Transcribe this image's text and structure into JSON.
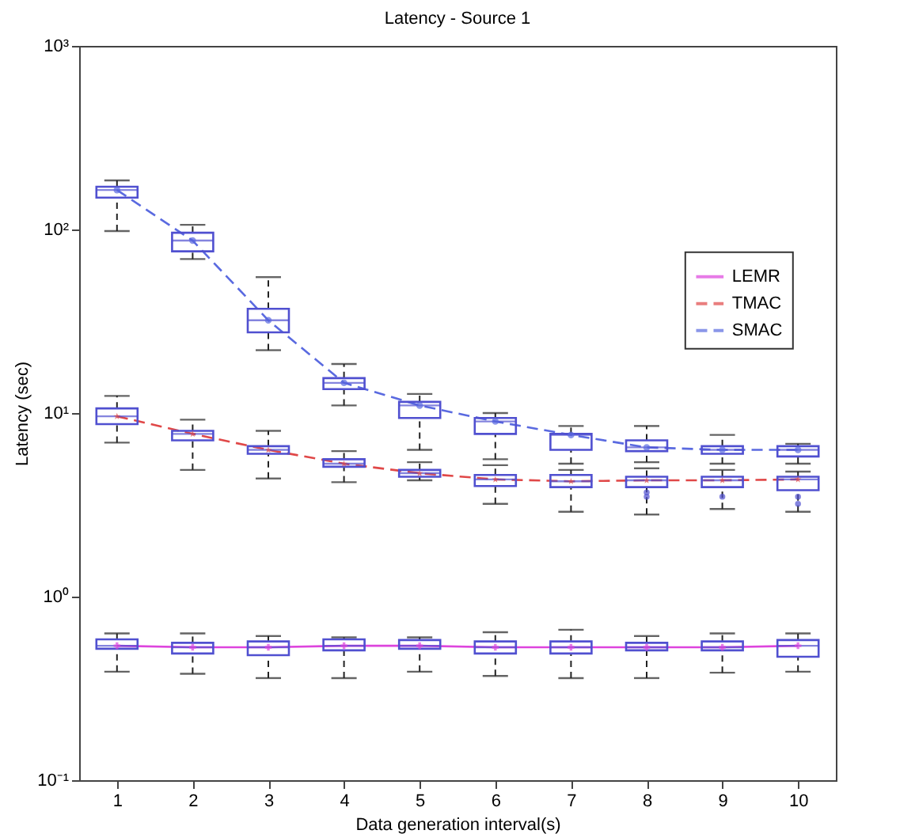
{
  "chart_data": {
    "type": "box",
    "title": "Latency - Source 1",
    "xlabel": "Data generation interval(s)",
    "ylabel": "Latency (sec)",
    "categories": [
      "1",
      "2",
      "3",
      "4",
      "5",
      "6",
      "7",
      "8",
      "9",
      "10"
    ],
    "log": true,
    "ylim": [
      0.1,
      1000
    ],
    "yticks": [
      {
        "value": 0.1,
        "label": "10⁻¹"
      },
      {
        "value": 1,
        "label": "10⁰"
      },
      {
        "value": 10,
        "label": "10¹"
      },
      {
        "value": 100,
        "label": "10²"
      },
      {
        "value": 1000,
        "label": "10³"
      }
    ],
    "grid": false,
    "legend": "top right",
    "series": [
      {
        "color": "#5050d0",
        "boxes": [
          {
            "low": 0.39,
            "q1": 0.52,
            "median": 0.54,
            "q3": 0.585,
            "high": 0.63
          },
          {
            "low": 0.38,
            "q1": 0.49,
            "median": 0.53,
            "q3": 0.56,
            "high": 0.63
          },
          {
            "low": 0.36,
            "q1": 0.48,
            "median": 0.53,
            "q3": 0.57,
            "high": 0.61
          },
          {
            "low": 0.36,
            "q1": 0.51,
            "median": 0.54,
            "q3": 0.585,
            "high": 0.6
          },
          {
            "low": 0.39,
            "q1": 0.52,
            "median": 0.54,
            "q3": 0.58,
            "high": 0.6
          },
          {
            "low": 0.37,
            "q1": 0.49,
            "median": 0.53,
            "q3": 0.57,
            "high": 0.64
          },
          {
            "low": 0.36,
            "q1": 0.49,
            "median": 0.53,
            "q3": 0.57,
            "high": 0.66
          },
          {
            "low": 0.36,
            "q1": 0.51,
            "median": 0.53,
            "q3": 0.56,
            "high": 0.61
          },
          {
            "low": 0.385,
            "q1": 0.51,
            "median": 0.53,
            "q3": 0.57,
            "high": 0.63
          },
          {
            "low": 0.39,
            "q1": 0.47,
            "median": 0.54,
            "q3": 0.58,
            "high": 0.63
          }
        ]
      },
      {
        "color": "#5050d0",
        "boxes": [
          {
            "low": 6.9,
            "q1": 8.7,
            "median": 9.6,
            "q3": 10.6,
            "high": 12.4
          },
          {
            "low": 4.9,
            "q1": 7.1,
            "median": 7.7,
            "q3": 8.0,
            "high": 9.2
          },
          {
            "low": 4.4,
            "q1": 6.0,
            "median": 6.3,
            "q3": 6.6,
            "high": 8.0
          },
          {
            "low": 4.2,
            "q1": 5.1,
            "median": 5.3,
            "q3": 5.6,
            "high": 6.2
          },
          {
            "low": 4.3,
            "q1": 4.5,
            "median": 4.7,
            "q3": 4.9,
            "high": 5.4
          },
          {
            "low": 3.2,
            "q1": 4.0,
            "median": 4.35,
            "q3": 4.6,
            "high": 5.2
          },
          {
            "low": 2.9,
            "q1": 3.95,
            "median": 4.25,
            "q3": 4.6,
            "high": 4.9
          },
          {
            "low": 2.8,
            "q1": 3.95,
            "median": 4.3,
            "q3": 4.5,
            "high": 5.0,
            "outliers": [
              3.7,
              3.5
            ]
          },
          {
            "low": 3.0,
            "q1": 3.95,
            "median": 4.3,
            "q3": 4.5,
            "high": 4.9,
            "outliers": [
              3.5
            ]
          },
          {
            "low": 2.9,
            "q1": 3.8,
            "median": 4.35,
            "q3": 4.5,
            "high": 4.8,
            "outliers": [
              3.5,
              3.2
            ]
          }
        ]
      },
      {
        "color": "#5050d0",
        "boxes": [
          {
            "low": 98,
            "q1": 149,
            "median": 164,
            "q3": 171,
            "high": 185
          },
          {
            "low": 69,
            "q1": 76,
            "median": 87,
            "q3": 96,
            "high": 106
          },
          {
            "low": 22,
            "q1": 27.5,
            "median": 32,
            "q3": 37,
            "high": 55
          },
          {
            "low": 11,
            "q1": 13.5,
            "median": 14.6,
            "q3": 15.5,
            "high": 18.5
          },
          {
            "low": 6.3,
            "q1": 9.4,
            "median": 11,
            "q3": 11.5,
            "high": 12.7
          },
          {
            "low": 5.6,
            "q1": 7.7,
            "median": 9.0,
            "q3": 9.4,
            "high": 10
          },
          {
            "low": 5.3,
            "q1": 6.3,
            "median": 7.6,
            "q3": 7.7,
            "high": 8.5
          },
          {
            "low": 5.4,
            "q1": 6.2,
            "median": 6.5,
            "q3": 7.1,
            "high": 8.5
          },
          {
            "low": 5.3,
            "q1": 6.0,
            "median": 6.3,
            "q3": 6.6,
            "high": 7.6
          },
          {
            "low": 5.3,
            "q1": 5.8,
            "median": 6.3,
            "q3": 6.6,
            "high": 6.8
          }
        ]
      },
      {
        "type": "line",
        "name": "LEMR",
        "color": "#dd44dd",
        "line_style": "solid",
        "marker": "cross",
        "values": [
          0.54,
          0.53,
          0.53,
          0.54,
          0.54,
          0.53,
          0.53,
          0.53,
          0.53,
          0.54
        ]
      },
      {
        "type": "line",
        "name": "TMAC",
        "color": "#e04848",
        "line_style": "dashed",
        "marker": "star",
        "values": [
          9.6,
          7.7,
          6.3,
          5.3,
          4.7,
          4.35,
          4.25,
          4.3,
          4.3,
          4.35
        ]
      },
      {
        "type": "line",
        "name": "SMAC",
        "color": "#5a6ae0",
        "line_style": "dashed",
        "marker": "circle",
        "values": [
          164,
          87,
          32,
          14.6,
          11,
          9.0,
          7.6,
          6.5,
          6.3,
          6.3
        ]
      }
    ]
  }
}
